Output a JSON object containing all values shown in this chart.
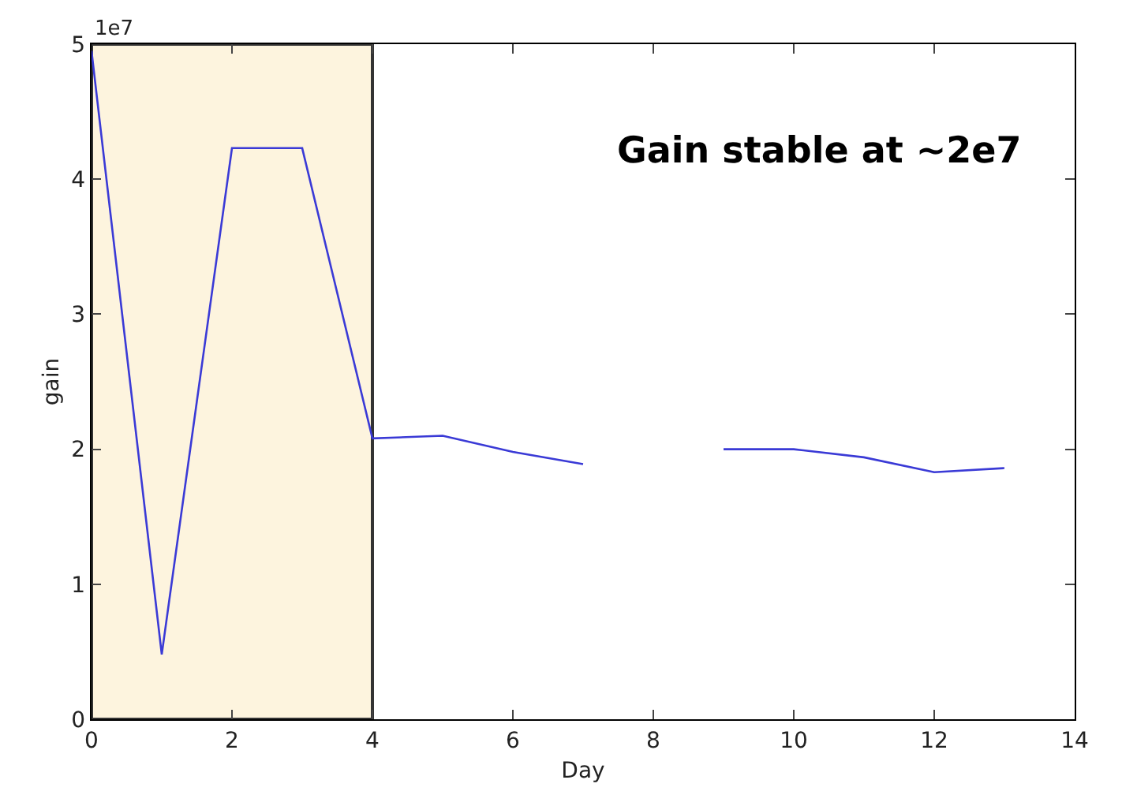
{
  "chart_data": {
    "type": "line",
    "xlabel": "Day",
    "ylabel": "gain",
    "x": [
      0,
      1,
      2,
      3,
      4,
      5,
      6,
      7,
      8,
      9,
      10,
      11,
      12,
      13
    ],
    "series": [
      {
        "color": "#3a3ad6",
        "values": [
          4.95,
          0.48,
          4.23,
          4.23,
          2.08,
          2.1,
          1.98,
          1.89,
          null,
          2.0,
          2.0,
          1.94,
          1.83,
          1.86
        ]
      }
    ],
    "xlim": [
      0,
      14
    ],
    "xticks": [
      0,
      2,
      4,
      6,
      8,
      10,
      12,
      14
    ],
    "ylim": [
      0,
      5
    ],
    "yticks": [
      0,
      1,
      2,
      3,
      4,
      5
    ],
    "bands": [
      {
        "axis": "x",
        "from": 0,
        "to": 4,
        "color": "#fdf4de"
      }
    ],
    "annotations": [
      "1e7",
      "Gain stable at ~2e7"
    ],
    "marker": "none",
    "line_style": "solid"
  }
}
